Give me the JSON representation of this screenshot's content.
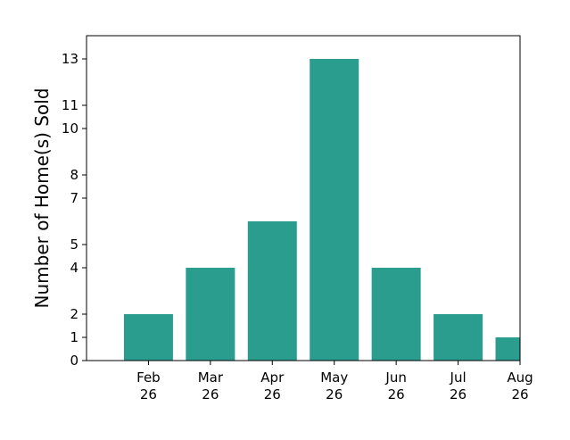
{
  "chart_data": {
    "type": "bar",
    "categories": [
      [
        "Feb",
        "26"
      ],
      [
        "Mar",
        "26"
      ],
      [
        "Apr",
        "26"
      ],
      [
        "May",
        "26"
      ],
      [
        "Jun",
        "26"
      ],
      [
        "Jul",
        "26"
      ],
      [
        "Aug",
        "26"
      ]
    ],
    "values": [
      2,
      4,
      6,
      13,
      4,
      2,
      1
    ],
    "title": "",
    "xlabel": "",
    "ylabel": "Number of Home(s) Sold",
    "ylim": [
      0,
      14
    ],
    "yticks": [
      0,
      1,
      2,
      4,
      5,
      7,
      8,
      10,
      11,
      13
    ],
    "bar_color": "#2a9d8f",
    "grid": false,
    "legend": "none"
  }
}
